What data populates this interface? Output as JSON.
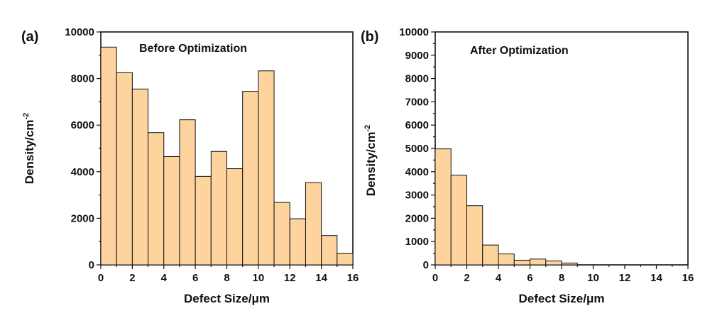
{
  "chart_data": [
    {
      "type": "bar",
      "panel_label": "(a)",
      "annotation": "Before Optimization",
      "xlabel": "Defect Size/μm",
      "ylabel": "Density/cm",
      "ylabel_superscript": "-2",
      "xlim": [
        0,
        16
      ],
      "ylim": [
        0,
        10000
      ],
      "x_ticks": [
        "0",
        "2",
        "4",
        "6",
        "8",
        "10",
        "12",
        "14",
        "16"
      ],
      "y_ticks": [
        "0",
        "2000",
        "4000",
        "6000",
        "8000",
        "10000"
      ],
      "bar_color": "#fdd39e",
      "bin_width": 1,
      "bins": [
        0,
        1,
        2,
        3,
        4,
        5,
        6,
        7,
        8,
        9,
        10,
        11,
        12,
        13,
        14,
        15
      ],
      "values": [
        9350,
        8250,
        7550,
        5680,
        4650,
        6230,
        3800,
        4870,
        4130,
        7450,
        8330,
        2680,
        1980,
        3530,
        1260,
        500
      ]
    },
    {
      "type": "bar",
      "panel_label": "(b)",
      "annotation": "After Optimization",
      "xlabel": "Defect Size/μm",
      "ylabel": "Density/cm",
      "ylabel_superscript": "-2",
      "xlim": [
        0,
        16
      ],
      "ylim": [
        0,
        10000
      ],
      "x_ticks": [
        "0",
        "2",
        "4",
        "6",
        "8",
        "10",
        "12",
        "14",
        "16"
      ],
      "y_ticks": [
        "0",
        "1000",
        "2000",
        "3000",
        "4000",
        "5000",
        "6000",
        "7000",
        "8000",
        "9000",
        "10000"
      ],
      "bar_color": "#fdd39e",
      "bin_width": 1,
      "bins": [
        0,
        1,
        2,
        3,
        4,
        5,
        6,
        7,
        8,
        9,
        10,
        11,
        12,
        13,
        14,
        15
      ],
      "values": [
        4980,
        3850,
        2540,
        850,
        470,
        200,
        250,
        170,
        80,
        0,
        0,
        0,
        0,
        0,
        0,
        0
      ]
    }
  ]
}
